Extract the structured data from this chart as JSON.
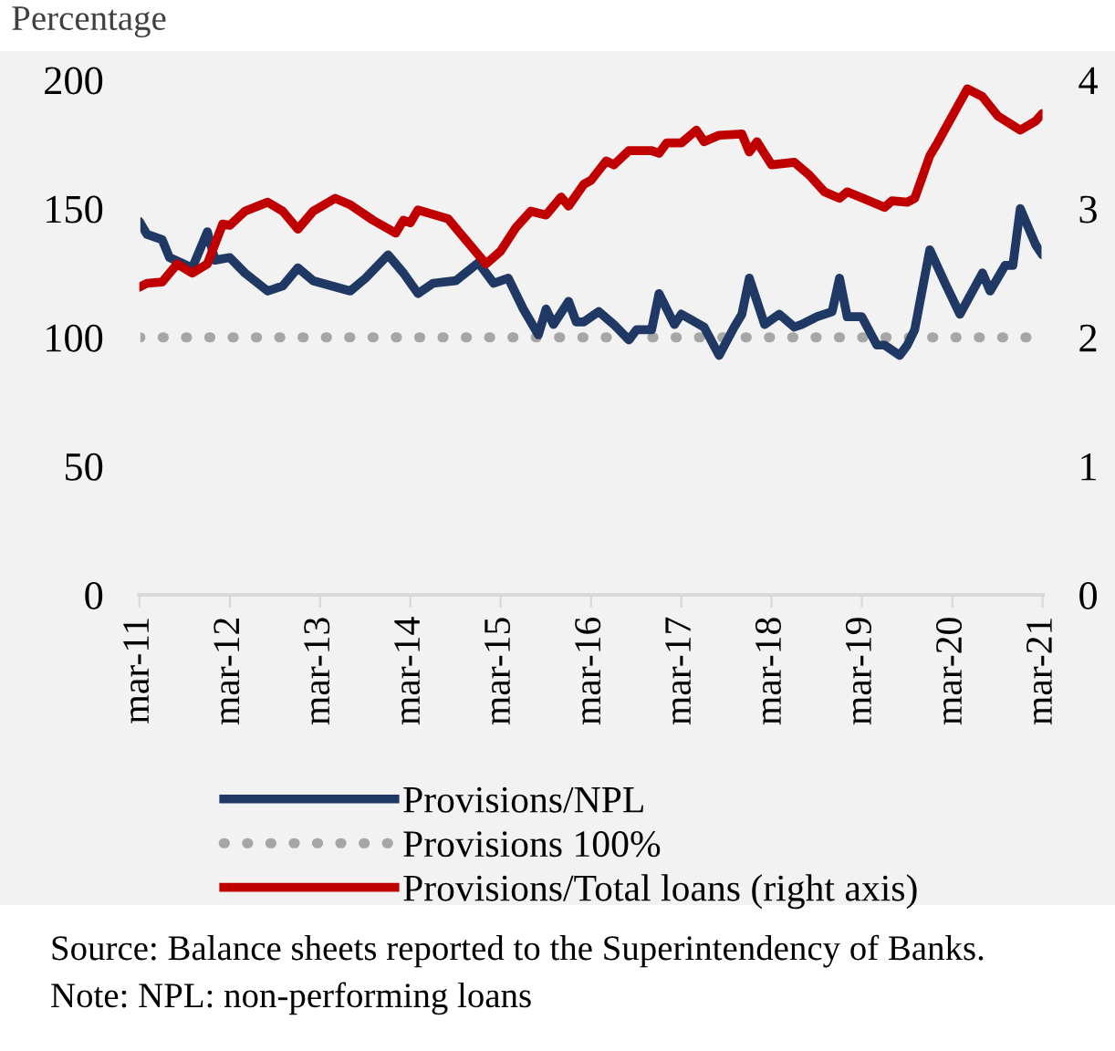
{
  "chart_data": {
    "type": "line",
    "ylabel": "Percentage",
    "series": [
      {
        "name": "Provisions/NPL",
        "color": "#1f3864",
        "line_style": "solid",
        "x": [
          "2011-03",
          "2011-04",
          "2011-06",
          "2011-07",
          "2011-10",
          "2011-12",
          "2012-01",
          "2012-03",
          "2012-05",
          "2012-08",
          "2012-10",
          "2012-12",
          "2013-02",
          "2013-07",
          "2013-09",
          "2013-12",
          "2014-02",
          "2014-04",
          "2014-06",
          "2014-09",
          "2014-12",
          "2015-02",
          "2015-04",
          "2015-06",
          "2015-08",
          "2015-09",
          "2015-10",
          "2015-12",
          "2016-01",
          "2016-02",
          "2016-04",
          "2016-06",
          "2016-08",
          "2016-09",
          "2016-11",
          "2016-12",
          "2017-02",
          "2017-03",
          "2017-06",
          "2017-08",
          "2017-10",
          "2017-11",
          "2017-12",
          "2018-02",
          "2018-04",
          "2018-06",
          "2018-07",
          "2018-09",
          "2018-11",
          "2018-12",
          "2019-01",
          "2019-03",
          "2019-05",
          "2019-06",
          "2019-08",
          "2019-09",
          "2019-10",
          "2019-12",
          "2020-02",
          "2020-04",
          "2020-07",
          "2020-08",
          "2020-10",
          "2020-11",
          "2020-12",
          "2021-02",
          "2021-03"
        ],
        "values": [
          145,
          140,
          138,
          131,
          127,
          141,
          130,
          131,
          125,
          118,
          120,
          127,
          122,
          118,
          123,
          132,
          125,
          117,
          121,
          122,
          129,
          121,
          123,
          111,
          101,
          111,
          105,
          114,
          106,
          106,
          110,
          105,
          99,
          103,
          103,
          117,
          105,
          109,
          104,
          93,
          104,
          109,
          123,
          105,
          109,
          104,
          105,
          108,
          110,
          123,
          108,
          108,
          97,
          97,
          93,
          97,
          103,
          134,
          121,
          109,
          125,
          118,
          128,
          128,
          150,
          136,
          132
        ]
      },
      {
        "name": "Provisions 100%",
        "color": "#a6a6a6",
        "line_style": "dotted",
        "x": [
          "2011-03",
          "2021-03"
        ],
        "values": [
          100,
          100
        ]
      },
      {
        "name": "Provisions/Total loans (right axis)",
        "color": "#c00000",
        "line_style": "solid",
        "axis": "y2",
        "x": [
          "2011-03",
          "2011-04",
          "2011-06",
          "2011-08",
          "2011-10",
          "2011-12",
          "2012-02",
          "2012-03",
          "2012-05",
          "2012-08",
          "2012-10",
          "2012-12",
          "2013-02",
          "2013-05",
          "2013-07",
          "2013-10",
          "2014-01",
          "2014-02",
          "2014-03",
          "2014-04",
          "2014-08",
          "2014-10",
          "2015-01",
          "2015-03",
          "2015-05",
          "2015-07",
          "2015-09",
          "2015-11",
          "2015-12",
          "2016-02",
          "2016-03",
          "2016-05",
          "2016-06",
          "2016-08",
          "2016-11",
          "2016-12",
          "2017-01",
          "2017-03",
          "2017-05",
          "2017-06",
          "2017-08",
          "2017-11",
          "2017-12",
          "2018-01",
          "2018-03",
          "2018-06",
          "2018-08",
          "2018-10",
          "2018-12",
          "2019-01",
          "2019-04",
          "2019-06",
          "2019-07",
          "2019-09",
          "2019-10",
          "2019-12",
          "2020-01",
          "2020-03",
          "2020-05",
          "2020-07",
          "2020-09",
          "2020-12",
          "2021-02",
          "2021-03"
        ],
        "values": [
          2.39,
          2.42,
          2.43,
          2.57,
          2.5,
          2.57,
          2.88,
          2.87,
          2.98,
          3.05,
          2.98,
          2.84,
          2.98,
          3.08,
          3.03,
          2.91,
          2.81,
          2.91,
          2.89,
          2.99,
          2.92,
          2.78,
          2.57,
          2.67,
          2.85,
          2.98,
          2.95,
          3.09,
          3.02,
          3.19,
          3.22,
          3.37,
          3.34,
          3.45,
          3.45,
          3.43,
          3.51,
          3.51,
          3.61,
          3.52,
          3.57,
          3.58,
          3.44,
          3.52,
          3.34,
          3.36,
          3.26,
          3.13,
          3.08,
          3.13,
          3.06,
          3.01,
          3.06,
          3.05,
          3.08,
          3.41,
          3.51,
          3.72,
          3.93,
          3.87,
          3.72,
          3.61,
          3.68,
          3.74
        ]
      }
    ],
    "xlim": [
      "2011-03",
      "2021-03"
    ],
    "xticks": [
      {
        "value": "2011-03",
        "label": "mar-11"
      },
      {
        "value": "2012-03",
        "label": "mar-12"
      },
      {
        "value": "2013-03",
        "label": "mar-13"
      },
      {
        "value": "2014-03",
        "label": "mar-14"
      },
      {
        "value": "2015-03",
        "label": "mar-15"
      },
      {
        "value": "2016-03",
        "label": "mar-16"
      },
      {
        "value": "2017-03",
        "label": "mar-17"
      },
      {
        "value": "2018-03",
        "label": "mar-18"
      },
      {
        "value": "2019-03",
        "label": "mar-19"
      },
      {
        "value": "2020-03",
        "label": "mar-20"
      },
      {
        "value": "2021-03",
        "label": "mar-21"
      }
    ],
    "ylim": [
      0,
      200
    ],
    "yticks": [
      0,
      50,
      100,
      150,
      200
    ],
    "y2lim": [
      0,
      4
    ],
    "y2ticks": [
      0,
      1,
      2,
      3,
      4
    ],
    "grid": false,
    "legend": "bottom",
    "marker": "none",
    "annotations": [
      "Source: Balance sheets reported to the Superintendency of Banks.",
      "Note: NPL: non-performing loans"
    ]
  }
}
